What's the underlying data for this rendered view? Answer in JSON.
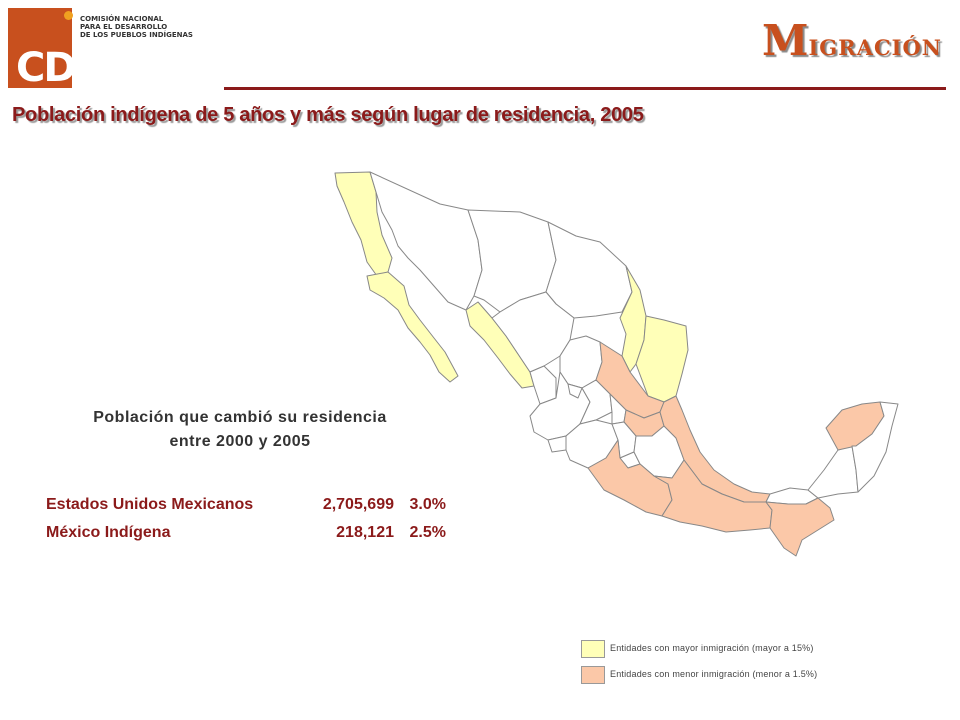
{
  "logo": {
    "text": "CDI",
    "org_lines": [
      "COMISIÓN NACIONAL",
      "PARA EL DESARROLLO",
      "DE LOS PUEBLOS INDÍGENAS"
    ]
  },
  "section_title": {
    "initial": "M",
    "rest": "IGRACIÓN"
  },
  "title": "Población indígena de 5 años y más según lugar de residencia, 2005",
  "subtitle_lines": [
    "Población que cambió su residencia",
    "entre 2000 y 2005"
  ],
  "stats": [
    {
      "name": "Estados Unidos Mexicanos",
      "value": "2,705,699",
      "pct": "3.0%"
    },
    {
      "name": "México Indígena",
      "value": "218,121",
      "pct": "2.5%"
    }
  ],
  "legend": [
    {
      "label": "Entidades con mayor inmigración (mayor a 15%)",
      "color": "#ffffb8"
    },
    {
      "label": "Entidades con menor inmigración (menor a 1.5%)",
      "color": "#fbc8a8"
    }
  ],
  "colors": {
    "brand": "#c8501e",
    "title": "#8b1a1a",
    "high": "#ffffb8",
    "low": "#fbc8a8",
    "neutral": "#ffffff",
    "border": "#888888"
  },
  "map": {
    "region": "México",
    "high_immigration_states": [
      "Baja California",
      "Baja California Sur",
      "Sinaloa",
      "Tamaulipas"
    ],
    "low_immigration_states": [
      "San Luis Potosí",
      "Hidalgo",
      "Veracruz",
      "Guerrero",
      "Oaxaca",
      "Chiapas",
      "Yucatán"
    ]
  }
}
